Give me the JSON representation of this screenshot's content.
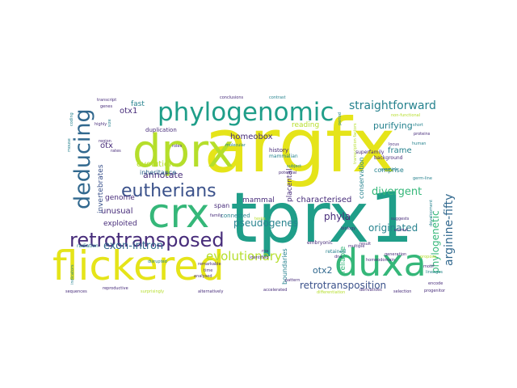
{
  "cloud": {
    "colors": {
      "purple": "#472c7a",
      "indigo": "#3b528b",
      "blue": "#31688e",
      "teal": "#26828e",
      "cyan": "#1f9e89",
      "green": "#35b779",
      "lime": "#6ece58",
      "lightgreen": "#b5de2b",
      "yellow": "#e5e419"
    },
    "words": [
      {
        "text": "argfx",
        "weight": 100,
        "color": "#e5e419"
      },
      {
        "text": "tprx1",
        "weight": 92,
        "color": "#1f9e89"
      },
      {
        "text": "flickered",
        "weight": 60,
        "color": "#e5e419"
      },
      {
        "text": "dprx",
        "weight": 52,
        "color": "#b5de2b"
      },
      {
        "text": "crx",
        "weight": 48,
        "color": "#35b779"
      },
      {
        "text": "duxa",
        "weight": 46,
        "color": "#35b779"
      },
      {
        "text": "phylogenomic",
        "weight": 40,
        "color": "#1f9e89"
      },
      {
        "text": "deducing",
        "weight": 34,
        "color": "#31688e"
      },
      {
        "text": "retrotransposed",
        "weight": 32,
        "color": "#472c7a"
      },
      {
        "text": "eutherians",
        "weight": 26,
        "color": "#3b528b"
      },
      {
        "text": "evolutionary",
        "weight": 18,
        "color": "#b5de2b"
      },
      {
        "text": "exon-intron",
        "weight": 14,
        "color": "#31688e"
      },
      {
        "text": "pseudogenes",
        "weight": 14,
        "color": "#26828e"
      },
      {
        "text": "straightforward",
        "weight": 13,
        "color": "#26828e"
      },
      {
        "text": "purifying",
        "weight": 13,
        "color": "#26828e"
      },
      {
        "text": "divergent",
        "weight": 13,
        "color": "#35b779"
      },
      {
        "text": "arginine-fifty",
        "weight": 12,
        "color": "#31688e"
      },
      {
        "text": "retrotransposition",
        "weight": 11,
        "color": "#3b528b"
      },
      {
        "text": "originated",
        "weight": 11,
        "color": "#26828e"
      },
      {
        "text": "phylogenetic",
        "weight": 11,
        "color": "#35b779"
      },
      {
        "text": "phyla",
        "weight": 11,
        "color": "#472c7a"
      },
      {
        "text": "otx2",
        "weight": 11,
        "color": "#31688e"
      },
      {
        "text": "annotate",
        "weight": 10,
        "color": "#472c7a"
      },
      {
        "text": "evolution",
        "weight": 10,
        "color": "#b5de2b"
      },
      {
        "text": "characterised",
        "weight": 9,
        "color": "#472c7a"
      },
      {
        "text": "homeobox",
        "weight": 9,
        "color": "#472c7a"
      },
      {
        "text": "frame",
        "weight": 9,
        "color": "#26828e"
      },
      {
        "text": "comprise",
        "weight": 8,
        "color": "#26828e"
      },
      {
        "text": "otx1",
        "weight": 9,
        "color": "#472c7a"
      },
      {
        "text": "otx",
        "weight": 9,
        "color": "#472c7a"
      },
      {
        "text": "fast",
        "weight": 9,
        "color": "#26828e"
      },
      {
        "text": "unusual",
        "weight": 9,
        "color": "#472c7a"
      },
      {
        "text": "exploited",
        "weight": 8,
        "color": "#472c7a"
      },
      {
        "text": "genome",
        "weight": 8,
        "color": "#472c7a"
      },
      {
        "text": "inheritance",
        "weight": 8,
        "color": "#31688e"
      },
      {
        "text": "invertebrates",
        "weight": 8,
        "color": "#3b528b"
      },
      {
        "text": "placental",
        "weight": 8,
        "color": "#472c7a"
      },
      {
        "text": "mammal",
        "weight": 8,
        "color": "#472c7a"
      },
      {
        "text": "reliable",
        "weight": 8,
        "color": "#35b779"
      },
      {
        "text": "conservation",
        "weight": 7,
        "color": "#26828e"
      },
      {
        "text": "boundaries",
        "weight": 7,
        "color": "#26828e"
      },
      {
        "text": "reading",
        "weight": 8,
        "color": "#b5de2b"
      },
      {
        "text": "duplication",
        "weight": 6,
        "color": "#472c7a"
      },
      {
        "text": "history",
        "weight": 6,
        "color": "#472c7a"
      },
      {
        "text": "span",
        "weight": 6,
        "color": "#472c7a"
      },
      {
        "text": "connected",
        "weight": 6,
        "color": "#26828e"
      },
      {
        "text": "retained",
        "weight": 5,
        "color": "#26828e"
      },
      {
        "text": "mammalian",
        "weight": 5,
        "color": "#26828e"
      },
      {
        "text": "embryonic",
        "weight": 5,
        "color": "#472c7a"
      },
      {
        "text": "radiation",
        "weight": 5,
        "color": "#26828e"
      },
      {
        "text": "superfamily",
        "weight": 4,
        "color": "#472c7a"
      },
      {
        "text": "background",
        "weight": 4,
        "color": "#472c7a"
      },
      {
        "text": "locus",
        "weight": 4,
        "color": "#472c7a"
      },
      {
        "text": "examine",
        "weight": 4,
        "color": "#26828e"
      },
      {
        "text": "germ-line",
        "weight": 4,
        "color": "#26828e"
      },
      {
        "text": "proteins",
        "weight": 4,
        "color": "#472c7a"
      },
      {
        "text": "human",
        "weight": 4,
        "color": "#26828e"
      },
      {
        "text": "short",
        "weight": 4,
        "color": "#26828e"
      },
      {
        "text": "period",
        "weight": 4,
        "color": "#26828e"
      },
      {
        "text": "transcription factors",
        "weight": 4,
        "color": "#b5de2b"
      },
      {
        "text": "non-functional",
        "weight": 4,
        "color": "#b5de2b"
      },
      {
        "text": "development",
        "weight": 4,
        "color": "#26828e"
      },
      {
        "text": "conclusions",
        "weight": 4,
        "color": "#472c7a"
      },
      {
        "text": "contrast",
        "weight": 4,
        "color": "#26828e"
      },
      {
        "text": "transcript",
        "weight": 4,
        "color": "#472c7a"
      },
      {
        "text": "genes",
        "weight": 4,
        "color": "#472c7a"
      },
      {
        "text": "highly",
        "weight": 4,
        "color": "#472c7a"
      },
      {
        "text": "coding",
        "weight": 4,
        "color": "#26828e"
      },
      {
        "text": "mouse",
        "weight": 4,
        "color": "#26828e"
      },
      {
        "text": "size",
        "weight": 4,
        "color": "#26828e"
      },
      {
        "text": "roles",
        "weight": 4,
        "color": "#472c7a"
      },
      {
        "text": "molecular",
        "weight": 4,
        "color": "#26828e"
      },
      {
        "text": "subject",
        "weight": 4,
        "color": "#26828e"
      },
      {
        "text": "potential",
        "weight": 4,
        "color": "#472c7a"
      },
      {
        "text": "region",
        "weight": 4,
        "color": "#472c7a"
      },
      {
        "text": "rates",
        "weight": 4,
        "color": "#472c7a"
      },
      {
        "text": "family",
        "weight": 4,
        "color": "#472c7a"
      },
      {
        "text": "testis",
        "weight": 4,
        "color": "#b5de2b"
      },
      {
        "text": "biology",
        "weight": 4,
        "color": "#472c7a"
      },
      {
        "text": "animal",
        "weight": 4,
        "color": "#472c7a"
      },
      {
        "text": "suggests",
        "weight": 4,
        "color": "#472c7a"
      },
      {
        "text": "result",
        "weight": 4,
        "color": "#472c7a"
      },
      {
        "text": "generation",
        "weight": 4,
        "color": "#472c7a"
      },
      {
        "text": "homeodomain",
        "weight": 4,
        "color": "#472c7a"
      },
      {
        "text": "propose",
        "weight": 4,
        "color": "#b5de2b"
      },
      {
        "text": "lineages",
        "weight": 4,
        "color": "#26828e"
      },
      {
        "text": "motif",
        "weight": 4,
        "color": "#472c7a"
      },
      {
        "text": "encode",
        "weight": 4,
        "color": "#472c7a"
      },
      {
        "text": "progenitor",
        "weight": 4,
        "color": "#472c7a"
      },
      {
        "text": "selection",
        "weight": 4,
        "color": "#472c7a"
      },
      {
        "text": "derivatives",
        "weight": 4,
        "color": "#472c7a"
      },
      {
        "text": "differentiation",
        "weight": 4,
        "color": "#b5de2b"
      },
      {
        "text": "accelerated",
        "weight": 4,
        "color": "#472c7a"
      },
      {
        "text": "pattern",
        "weight": 4,
        "color": "#472c7a"
      },
      {
        "text": "multiple",
        "weight": 4,
        "color": "#472c7a"
      },
      {
        "text": "dna",
        "weight": 4,
        "color": "#472c7a"
      },
      {
        "text": "rna",
        "weight": 4,
        "color": "#472c7a"
      },
      {
        "text": "identified",
        "weight": 4,
        "color": "#472c7a"
      },
      {
        "text": "remarkable",
        "weight": 4,
        "color": "#472c7a"
      },
      {
        "text": "time",
        "weight": 4,
        "color": "#472c7a"
      },
      {
        "text": "analysed",
        "weight": 4,
        "color": "#472c7a"
      },
      {
        "text": "alternatively",
        "weight": 4,
        "color": "#472c7a"
      },
      {
        "text": "surprisingly",
        "weight": 4,
        "color": "#b5de2b"
      },
      {
        "text": "reproductive",
        "weight": 4,
        "color": "#472c7a"
      },
      {
        "text": "sequences",
        "weight": 4,
        "color": "#472c7a"
      },
      {
        "text": "indicators",
        "weight": 4,
        "color": "#26828e"
      },
      {
        "text": "disrupted",
        "weight": 4,
        "color": "#26828e"
      }
    ]
  }
}
